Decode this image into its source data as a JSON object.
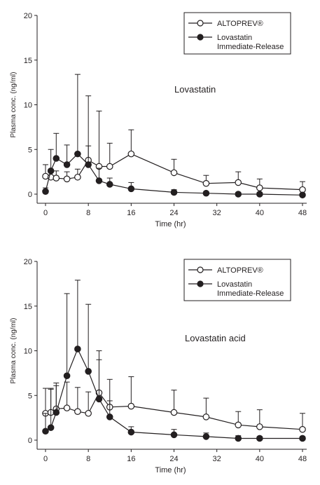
{
  "chart_data": [
    {
      "type": "line",
      "title": "Lovastatin",
      "xlabel": "Time (hr)",
      "ylabel": "Plasma conc. (ng/ml)",
      "xlim": [
        -1,
        48
      ],
      "ylim": [
        0,
        20
      ],
      "xticks": [
        0,
        8,
        16,
        24,
        32,
        40,
        48
      ],
      "yticks": [
        0,
        5,
        10,
        15,
        20
      ],
      "legend_position": "top-right",
      "series": [
        {
          "name": "ALTOPREV®",
          "marker": "open-circle",
          "x": [
            0,
            1,
            2,
            4,
            6,
            8,
            10,
            12,
            16,
            24,
            30,
            36,
            40,
            48
          ],
          "y": [
            2.0,
            1.9,
            1.8,
            1.7,
            1.9,
            3.8,
            3.1,
            3.1,
            4.5,
            2.4,
            1.2,
            1.3,
            0.7,
            0.5
          ],
          "err_high": [
            3.3,
            2.8,
            2.6,
            2.5,
            2.8,
            11.0,
            9.3,
            5.7,
            7.2,
            3.9,
            2.1,
            2.5,
            1.7,
            1.4
          ]
        },
        {
          "name": "Lovastatin Immediate-Release",
          "marker": "filled-circle",
          "x": [
            0,
            1,
            2,
            4,
            6,
            8,
            10,
            12,
            16,
            24,
            30,
            36,
            40,
            48
          ],
          "y": [
            0.3,
            2.6,
            4.0,
            3.3,
            4.5,
            3.3,
            1.5,
            1.1,
            0.6,
            0.2,
            0.1,
            0.0,
            0.0,
            -0.1
          ],
          "err_high": [
            0.7,
            5.0,
            6.8,
            5.5,
            13.4,
            5.4,
            2.9,
            1.8,
            1.3,
            0.5,
            0.3,
            0.2,
            0.2,
            0.1
          ]
        }
      ]
    },
    {
      "type": "line",
      "title": "Lovastatin acid",
      "xlabel": "Time (hr)",
      "ylabel": "Plasma conc. (ng/ml)",
      "xlim": [
        -1,
        48
      ],
      "ylim": [
        0,
        20
      ],
      "xticks": [
        0,
        8,
        16,
        24,
        32,
        40,
        48
      ],
      "yticks": [
        0,
        5,
        10,
        15,
        20
      ],
      "legend_position": "top-right",
      "series": [
        {
          "name": "ALTOPREV®",
          "marker": "open-circle",
          "x": [
            0,
            1,
            2,
            4,
            6,
            8,
            10,
            12,
            16,
            24,
            30,
            36,
            40,
            48
          ],
          "y": [
            3.0,
            3.1,
            3.5,
            3.6,
            3.2,
            3.0,
            5.3,
            3.7,
            3.8,
            3.1,
            2.6,
            1.7,
            1.5,
            1.2
          ],
          "err_high": [
            5.8,
            5.8,
            6.4,
            6.5,
            5.9,
            5.4,
            10.0,
            6.8,
            7.1,
            5.6,
            4.7,
            3.2,
            3.4,
            3.0
          ]
        },
        {
          "name": "Lovastatin Immediate-Release",
          "marker": "filled-circle",
          "x": [
            0,
            1,
            2,
            4,
            6,
            8,
            10,
            12,
            16,
            24,
            30,
            36,
            40,
            48
          ],
          "y": [
            1.0,
            1.4,
            3.1,
            7.2,
            10.2,
            7.7,
            4.6,
            2.6,
            0.9,
            0.6,
            0.4,
            0.2,
            0.2,
            0.2
          ],
          "err_high": [
            3.0,
            5.7,
            6.1,
            16.4,
            17.9,
            15.2,
            9.0,
            4.4,
            1.5,
            1.2,
            0.8,
            0.5,
            0.4,
            0.4
          ]
        }
      ]
    }
  ]
}
